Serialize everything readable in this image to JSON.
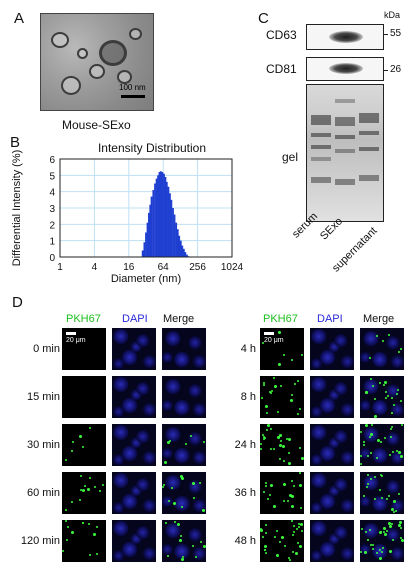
{
  "panel_a": {
    "letter": "A",
    "caption": "Mouse-SExo",
    "scale_label": "100 nm"
  },
  "panel_b": {
    "letter": "B"
  },
  "panel_c": {
    "letter": "C",
    "unit_label": "kDa",
    "blots": [
      {
        "label": "CD63",
        "marker": "55"
      },
      {
        "label": "CD81",
        "marker": "26"
      }
    ],
    "gel_label": "gel",
    "lanes": [
      "serum",
      "SExo",
      "supernatant"
    ]
  },
  "panel_d": {
    "letter": "D",
    "scale_label": "20 μm",
    "channels": [
      "PKH67",
      "DAPI",
      "Merge"
    ],
    "channel_colors": {
      "PKH67": "#1fbf1f",
      "DAPI": "#2b2bd9",
      "Merge": "#111111"
    },
    "left_times": [
      "0 min",
      "15 min",
      "30 min",
      "60 min",
      "120 min"
    ],
    "right_times": [
      "4 h",
      "8 h",
      "24 h",
      "36 h",
      "48 h"
    ],
    "green_signal_levels": {
      "left": [
        0,
        0,
        1,
        2,
        2
      ],
      "right": [
        1,
        3,
        4,
        3,
        5
      ]
    }
  },
  "chart_data": {
    "type": "bar",
    "title": "Intensity Distribution",
    "xlabel": "Diameter (nm)",
    "ylabel": "Differential Intensity (%)",
    "x_scale": "log2",
    "xlim": [
      1,
      1024
    ],
    "ylim": [
      0,
      6
    ],
    "x_ticks": [
      1,
      4,
      16,
      64,
      256,
      1024
    ],
    "y_ticks": [
      0,
      1,
      2,
      3,
      4,
      5,
      6
    ],
    "grid": true,
    "bar_color": "#1f3fd1",
    "x": [
      28,
      30,
      32,
      34,
      36,
      38,
      40,
      43,
      46,
      49,
      52,
      55,
      58,
      62,
      66,
      70,
      74,
      79,
      84,
      89,
      95,
      101,
      108,
      115,
      122,
      130,
      138,
      147,
      156,
      166,
      177
    ],
    "values": [
      0.4,
      0.9,
      1.5,
      2.1,
      2.7,
      3.2,
      3.7,
      4.1,
      4.5,
      4.8,
      5.0,
      5.2,
      5.25,
      5.2,
      5.1,
      4.9,
      4.6,
      4.3,
      3.9,
      3.5,
      3.0,
      2.6,
      2.1,
      1.7,
      1.3,
      1.0,
      0.7,
      0.5,
      0.3,
      0.15,
      0.05
    ]
  }
}
